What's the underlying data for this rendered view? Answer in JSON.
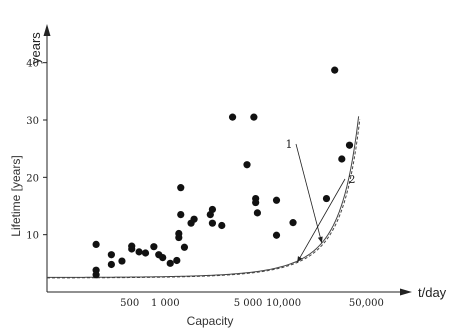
{
  "chart_data": {
    "type": "scatter",
    "title": "",
    "xlabel": "Capacity",
    "ylabel": "Lifetime [years]",
    "x_unit": "t/day",
    "y_unit": "years",
    "x_scale": "log",
    "xlim": [
      100,
      100000
    ],
    "ylim": [
      0,
      45
    ],
    "x_ticks": [
      500,
      1000,
      5000,
      10000,
      50000
    ],
    "x_tick_labels": [
      "500",
      "1 000",
      "5 000",
      "10,000",
      "50,000"
    ],
    "y_ticks": [
      10,
      20,
      30,
      40
    ],
    "y_tick_labels": [
      "10",
      "20",
      "30",
      "40"
    ],
    "grid": false,
    "points": [
      {
        "x": 260,
        "y": 8.3
      },
      {
        "x": 260,
        "y": 3.8
      },
      {
        "x": 260,
        "y": 3.0
      },
      {
        "x": 350,
        "y": 6.5
      },
      {
        "x": 350,
        "y": 4.8
      },
      {
        "x": 430,
        "y": 5.4
      },
      {
        "x": 520,
        "y": 7.5
      },
      {
        "x": 520,
        "y": 8.0
      },
      {
        "x": 600,
        "y": 7.0
      },
      {
        "x": 680,
        "y": 6.8
      },
      {
        "x": 800,
        "y": 7.9
      },
      {
        "x": 880,
        "y": 6.5
      },
      {
        "x": 950,
        "y": 6.0
      },
      {
        "x": 1100,
        "y": 5.0
      },
      {
        "x": 1250,
        "y": 5.5
      },
      {
        "x": 1300,
        "y": 10.2
      },
      {
        "x": 1300,
        "y": 9.5
      },
      {
        "x": 1350,
        "y": 13.5
      },
      {
        "x": 1350,
        "y": 18.2
      },
      {
        "x": 1450,
        "y": 7.8
      },
      {
        "x": 1650,
        "y": 12.0
      },
      {
        "x": 1750,
        "y": 12.7
      },
      {
        "x": 2400,
        "y": 13.5
      },
      {
        "x": 2500,
        "y": 12.0
      },
      {
        "x": 2500,
        "y": 14.4
      },
      {
        "x": 3000,
        "y": 11.6
      },
      {
        "x": 3700,
        "y": 30.5
      },
      {
        "x": 4900,
        "y": 22.2
      },
      {
        "x": 5600,
        "y": 30.5
      },
      {
        "x": 5800,
        "y": 16.3
      },
      {
        "x": 5800,
        "y": 15.6
      },
      {
        "x": 6000,
        "y": 13.8
      },
      {
        "x": 8700,
        "y": 9.9
      },
      {
        "x": 8700,
        "y": 16.0
      },
      {
        "x": 12000,
        "y": 12.1
      },
      {
        "x": 23000,
        "y": 16.3
      },
      {
        "x": 27000,
        "y": 38.7
      },
      {
        "x": 31000,
        "y": 23.2
      },
      {
        "x": 36000,
        "y": 25.6
      }
    ],
    "series": [
      {
        "name": "1",
        "style": "solid",
        "equation": "y = 2.53 * exp(0.000058 * x)",
        "x_range": [
          100,
          43000
        ]
      },
      {
        "name": "2",
        "style": "dashed",
        "equation": "y = 2.45 * exp(0.000057 * x)",
        "x_range": [
          100,
          44000
        ]
      }
    ],
    "annotations": [
      {
        "text": "1",
        "points_to_series": "1"
      },
      {
        "text": "2",
        "points_to_series": "2"
      }
    ],
    "colors": {
      "points": "#111111",
      "curve": "#444444",
      "axis": "#222222"
    }
  }
}
